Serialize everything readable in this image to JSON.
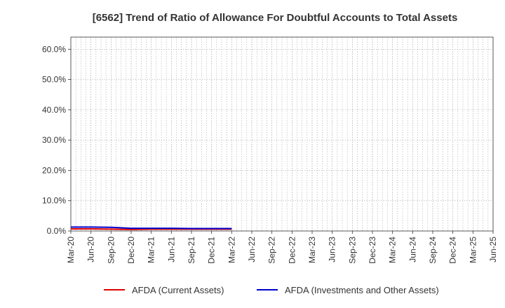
{
  "chart_data": {
    "type": "line",
    "title": "[6562]  Trend of Ratio of Allowance For Doubtful Accounts to Total Assets",
    "xlabel": "",
    "ylabel": "",
    "x": [
      "Mar-20",
      "Jun-20",
      "Sep-20",
      "Dec-20",
      "Mar-21",
      "Jun-21",
      "Sep-21",
      "Dec-21",
      "Mar-22",
      "Jun-22",
      "Sep-22",
      "Dec-22",
      "Mar-23",
      "Jun-23",
      "Sep-23",
      "Dec-23",
      "Mar-24",
      "Jun-24",
      "Sep-24",
      "Dec-24",
      "Mar-25",
      "Jun-25"
    ],
    "ylim": [
      0,
      0.64
    ],
    "yticks": [
      0,
      0.1,
      0.2,
      0.3,
      0.4,
      0.5,
      0.6
    ],
    "ytick_labels": [
      "0.0%",
      "10.0%",
      "20.0%",
      "30.0%",
      "40.0%",
      "50.0%",
      "60.0%"
    ],
    "grid": true,
    "legend_position": "bottom",
    "series": [
      {
        "name": "AFDA (Current Assets)",
        "color": "#e00000",
        "values": [
          0.007,
          0.007,
          0.006,
          0.005,
          0.006,
          0.006,
          0.006,
          0.006,
          0.006,
          null,
          null,
          null,
          null,
          null,
          null,
          null,
          null,
          null,
          null,
          null,
          null,
          null
        ]
      },
      {
        "name": "AFDA (Investments and Other Assets)",
        "color": "#0000cc",
        "values": [
          0.013,
          0.013,
          0.012,
          0.009,
          0.009,
          0.009,
          0.008,
          0.008,
          0.008,
          null,
          null,
          null,
          null,
          null,
          null,
          null,
          null,
          null,
          null,
          null,
          null,
          null
        ]
      }
    ]
  }
}
